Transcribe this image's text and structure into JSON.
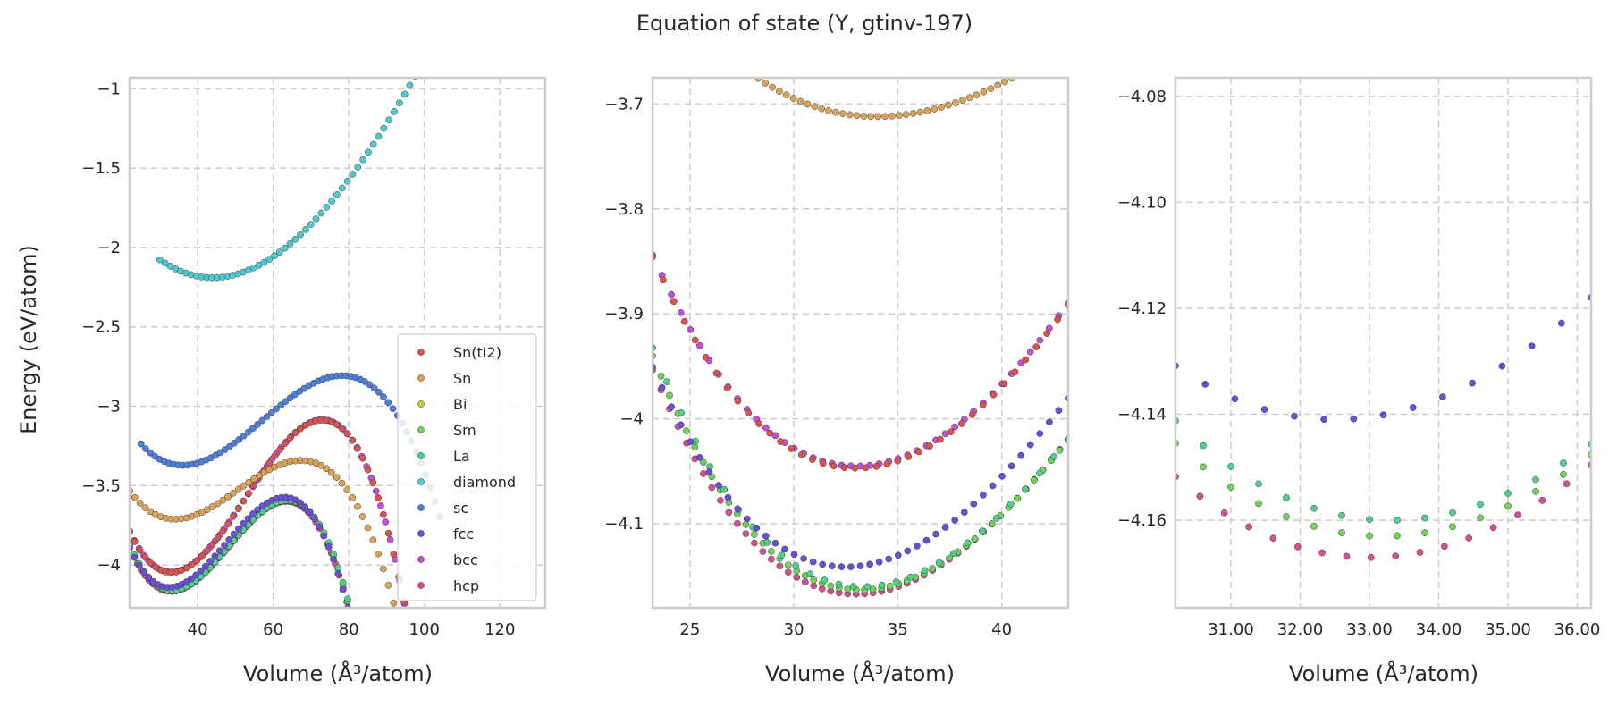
{
  "title": "Equation of state (Y, gtinv-197)",
  "ylabel": "Energy (eV/atom)",
  "xlabel": "Volume (Å³/atom)",
  "series_colors": {
    "Sn(tI2)": "#d9534f",
    "Sn": "#d9a45a",
    "Bi": "#c8cc3a",
    "Sm": "#6fd35a",
    "La": "#4ecf8c",
    "diamond": "#4fc9d0",
    "sc": "#4f7fd6",
    "fcc": "#6a4fd6",
    "bcc": "#c24fd6",
    "hcp": "#d64f8e"
  },
  "chart_data": [
    {
      "type": "scatter",
      "panel": "left",
      "xlim": [
        22,
        132
      ],
      "ylim": [
        -4.27,
        -0.93
      ],
      "xticks": [
        40,
        60,
        80,
        100,
        120
      ],
      "yticks": [
        -1.0,
        -1.5,
        -2.0,
        -2.5,
        -3.0,
        -3.5,
        -4.0
      ],
      "grid": true,
      "legend_position": "lower-right",
      "legend": [
        "Sn(tI2)",
        "Sn",
        "Bi",
        "Sm",
        "La",
        "diamond",
        "sc",
        "fcc",
        "bcc",
        "hcp"
      ],
      "curves": [
        {
          "name": "hcp",
          "V0": 33.0,
          "E0": -4.167,
          "a": 0.00183,
          "b": 4e-05,
          "x": [
            22,
            98
          ],
          "n": 75
        },
        {
          "name": "Sm",
          "V0": 33.2,
          "E0": -4.163,
          "a": 0.00183,
          "b": 4e-05,
          "x": [
            22,
            96
          ],
          "n": 60
        },
        {
          "name": "La",
          "V0": 33.3,
          "E0": -4.16,
          "a": 0.00183,
          "b": 4e-05,
          "x": [
            22,
            96
          ],
          "n": 60
        },
        {
          "name": "fcc",
          "V0": 32.5,
          "E0": -4.141,
          "a": 0.00183,
          "b": 4e-05,
          "x": [
            22,
            96
          ],
          "n": 60
        },
        {
          "name": "bcc",
          "V0": 33.0,
          "E0": -4.045,
          "a": 0.0018,
          "b": 3e-05,
          "x": [
            22,
            96
          ],
          "n": 60
        },
        {
          "name": "Sn(tI2)",
          "V0": 33.0,
          "E0": -4.047,
          "a": 0.0018,
          "b": 3e-05,
          "x": [
            22,
            96
          ],
          "n": 55
        },
        {
          "name": "Sn",
          "V0": 34.0,
          "E0": -3.712,
          "a": 0.001,
          "b": 2e-05,
          "x": [
            22,
            96
          ],
          "n": 55
        },
        {
          "name": "sc",
          "V0": 36.0,
          "E0": -3.372,
          "a": 0.00095,
          "b": 1.5e-05,
          "x": [
            25,
            104
          ],
          "n": 65
        },
        {
          "name": "diamond",
          "V0": 44.0,
          "E0": -2.19,
          "a": 0.00055,
          "b": 2e-06,
          "x": [
            30,
            132
          ],
          "n": 75
        }
      ]
    },
    {
      "type": "scatter",
      "panel": "middle",
      "xlim": [
        23.2,
        43.2
      ],
      "ylim": [
        -4.18,
        -3.675
      ],
      "xticks": [
        25,
        30,
        35,
        40
      ],
      "yticks": [
        -3.7,
        -3.8,
        -3.9,
        -4.0,
        -4.1
      ],
      "grid": true,
      "curves": [
        {
          "name": "hcp",
          "V0": 33.0,
          "E0": -4.167,
          "a": 0.00183,
          "b": 4e-05,
          "x": [
            23.2,
            43.2
          ],
          "n": 50
        },
        {
          "name": "Sm",
          "V0": 33.2,
          "E0": -4.163,
          "a": 0.00183,
          "b": 4e-05,
          "x": [
            23.2,
            43.2
          ],
          "n": 50
        },
        {
          "name": "La",
          "V0": 33.3,
          "E0": -4.16,
          "a": 0.00183,
          "b": 4e-05,
          "x": [
            23.2,
            43.2
          ],
          "n": 30
        },
        {
          "name": "fcc",
          "V0": 32.5,
          "E0": -4.141,
          "a": 0.00183,
          "b": 4e-05,
          "x": [
            23.2,
            43.2
          ],
          "n": 45
        },
        {
          "name": "bcc",
          "V0": 33.0,
          "E0": -4.045,
          "a": 0.0018,
          "b": 3e-05,
          "x": [
            23.2,
            43.2
          ],
          "n": 45
        },
        {
          "name": "Sn(tI2)",
          "V0": 33.0,
          "E0": -4.047,
          "a": 0.0018,
          "b": 3e-05,
          "x": [
            23.2,
            43.2
          ],
          "n": 40
        },
        {
          "name": "Sn",
          "V0": 34.0,
          "E0": -3.712,
          "a": 0.001,
          "b": 2e-05,
          "x": [
            23.2,
            43.2
          ],
          "n": 60
        }
      ]
    },
    {
      "type": "scatter",
      "panel": "right",
      "xlim": [
        30.2,
        36.2
      ],
      "ylim": [
        -4.1765,
        -4.0765
      ],
      "xticks": [
        31,
        32,
        33,
        34,
        35,
        36
      ],
      "yticks": [
        -4.08,
        -4.1,
        -4.12,
        -4.14,
        -4.16
      ],
      "grid": true,
      "curves": [
        {
          "name": "hcp",
          "V0": 33.0,
          "E0": -4.167,
          "a": 0.00183,
          "b": 4e-05,
          "x": [
            30.2,
            36.2
          ],
          "n": 18
        },
        {
          "name": "Sm",
          "V0": 33.2,
          "E0": -4.163,
          "a": 0.00183,
          "b": 4e-05,
          "x": [
            30.2,
            36.2
          ],
          "n": 16
        },
        {
          "name": "La",
          "V0": 33.3,
          "E0": -4.16,
          "a": 0.00183,
          "b": 4e-05,
          "x": [
            30.2,
            36.2
          ],
          "n": 16
        },
        {
          "name": "fcc",
          "V0": 32.5,
          "E0": -4.141,
          "a": 0.00183,
          "b": 4e-05,
          "x": [
            30.2,
            36.2
          ],
          "n": 15
        }
      ]
    }
  ]
}
